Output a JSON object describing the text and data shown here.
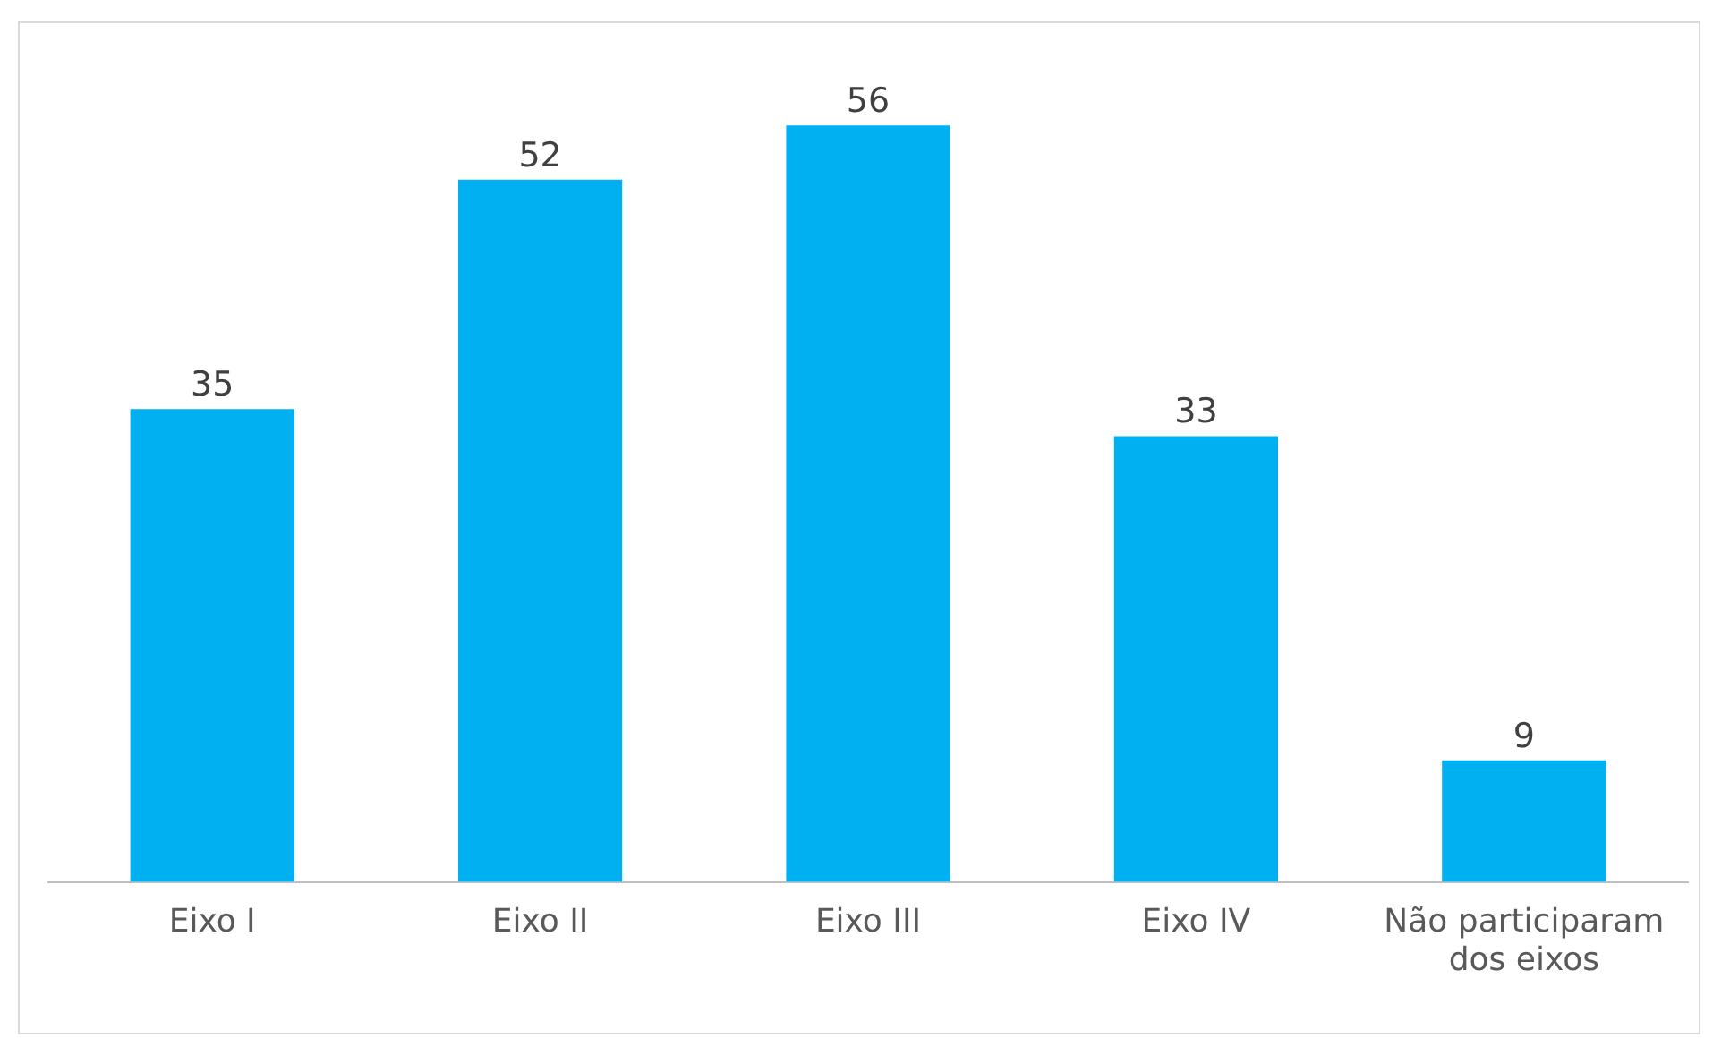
{
  "chart_data": {
    "type": "bar",
    "categories": [
      "Eixo I",
      "Eixo II",
      "Eixo III",
      "Eixo IV",
      "Não participaram dos eixos"
    ],
    "values": [
      35,
      52,
      56,
      33,
      9
    ],
    "color": "#00b0f0",
    "data_labels": true,
    "grid": false,
    "legend": false
  }
}
